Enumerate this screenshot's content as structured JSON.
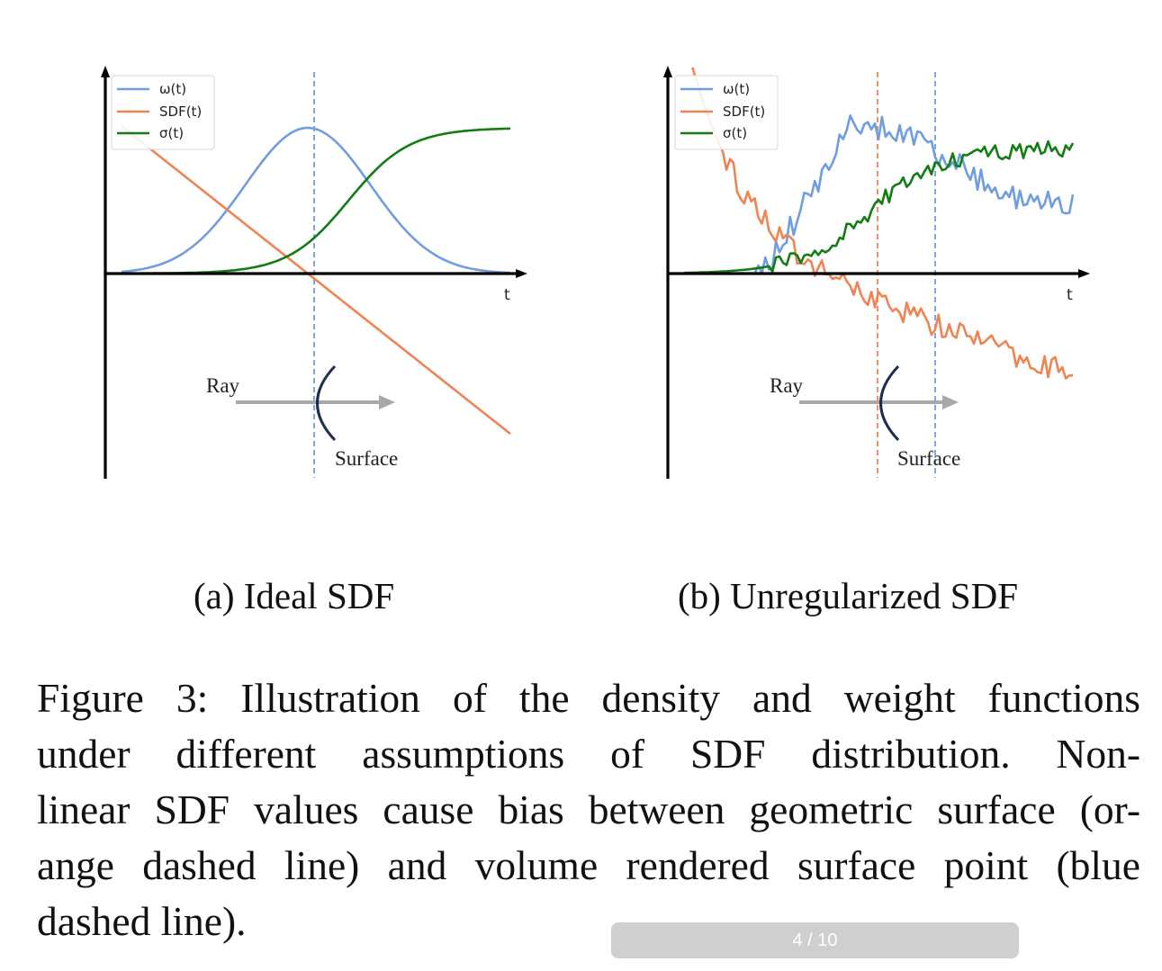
{
  "chart_data": [
    {
      "type": "line",
      "subcaption": "(a) Ideal SDF",
      "xlabel": "t",
      "xlim": [
        0,
        1
      ],
      "ylim": [
        -1.05,
        1.05
      ],
      "legend": [
        "ω(t)",
        "SDF(t)",
        "σ(t)"
      ],
      "legend_position": "top-left",
      "series": [
        {
          "name": "ω(t)",
          "color": "#6f9de0",
          "shape": "gaussian",
          "center": 0.5,
          "width": 0.155,
          "peak": 1.0
        },
        {
          "name": "SDF(t)",
          "color": "#ef8453",
          "shape": "linear",
          "zero_at": 0.5,
          "slope": -2.2
        },
        {
          "name": "σ(t)",
          "color": "#137d13",
          "shape": "sigmoid",
          "center": 0.6,
          "scale": 0.075,
          "max": 1.0
        }
      ],
      "vlines": [
        {
          "x": 0.5,
          "color": "#6f9de0",
          "style": "dashed"
        }
      ],
      "annotations": {
        "ray": "Ray",
        "surface": "Surface"
      }
    },
    {
      "type": "line",
      "subcaption": "(b) Unregularized SDF",
      "xlabel": "t",
      "xlim": [
        0,
        1
      ],
      "ylim": [
        -1.05,
        1.05
      ],
      "legend": [
        "ω(t)",
        "SDF(t)",
        "σ(t)"
      ],
      "legend_position": "top-left",
      "series": [
        {
          "name": "ω(t)",
          "color": "#6f9de0",
          "shape": "noisy-rising-then-falling",
          "noise": 0.08
        },
        {
          "name": "SDF(t)",
          "color": "#ef8453",
          "shape": "noisy-nonlinear-decreasing",
          "noise": 0.08
        },
        {
          "name": "σ(t)",
          "color": "#137d13",
          "shape": "noisy-sigmoid",
          "noise": 0.06
        }
      ],
      "vlines": [
        {
          "x": 0.5,
          "color": "#ef8453",
          "style": "dashed"
        },
        {
          "x": 0.64,
          "color": "#6f9de0",
          "style": "dashed"
        }
      ],
      "annotations": {
        "ray": "Ray",
        "surface": "Surface"
      }
    }
  ],
  "caption_lines": [
    "Figure 3: Illustration of the density and weight functions",
    "under different assumptions of SDF distribution. Non-",
    "linear SDF values cause bias between geometric surface (or-",
    "ange dashed line) and volume rendered surface point (blue",
    "dashed line)."
  ],
  "pager": "4 / 10"
}
